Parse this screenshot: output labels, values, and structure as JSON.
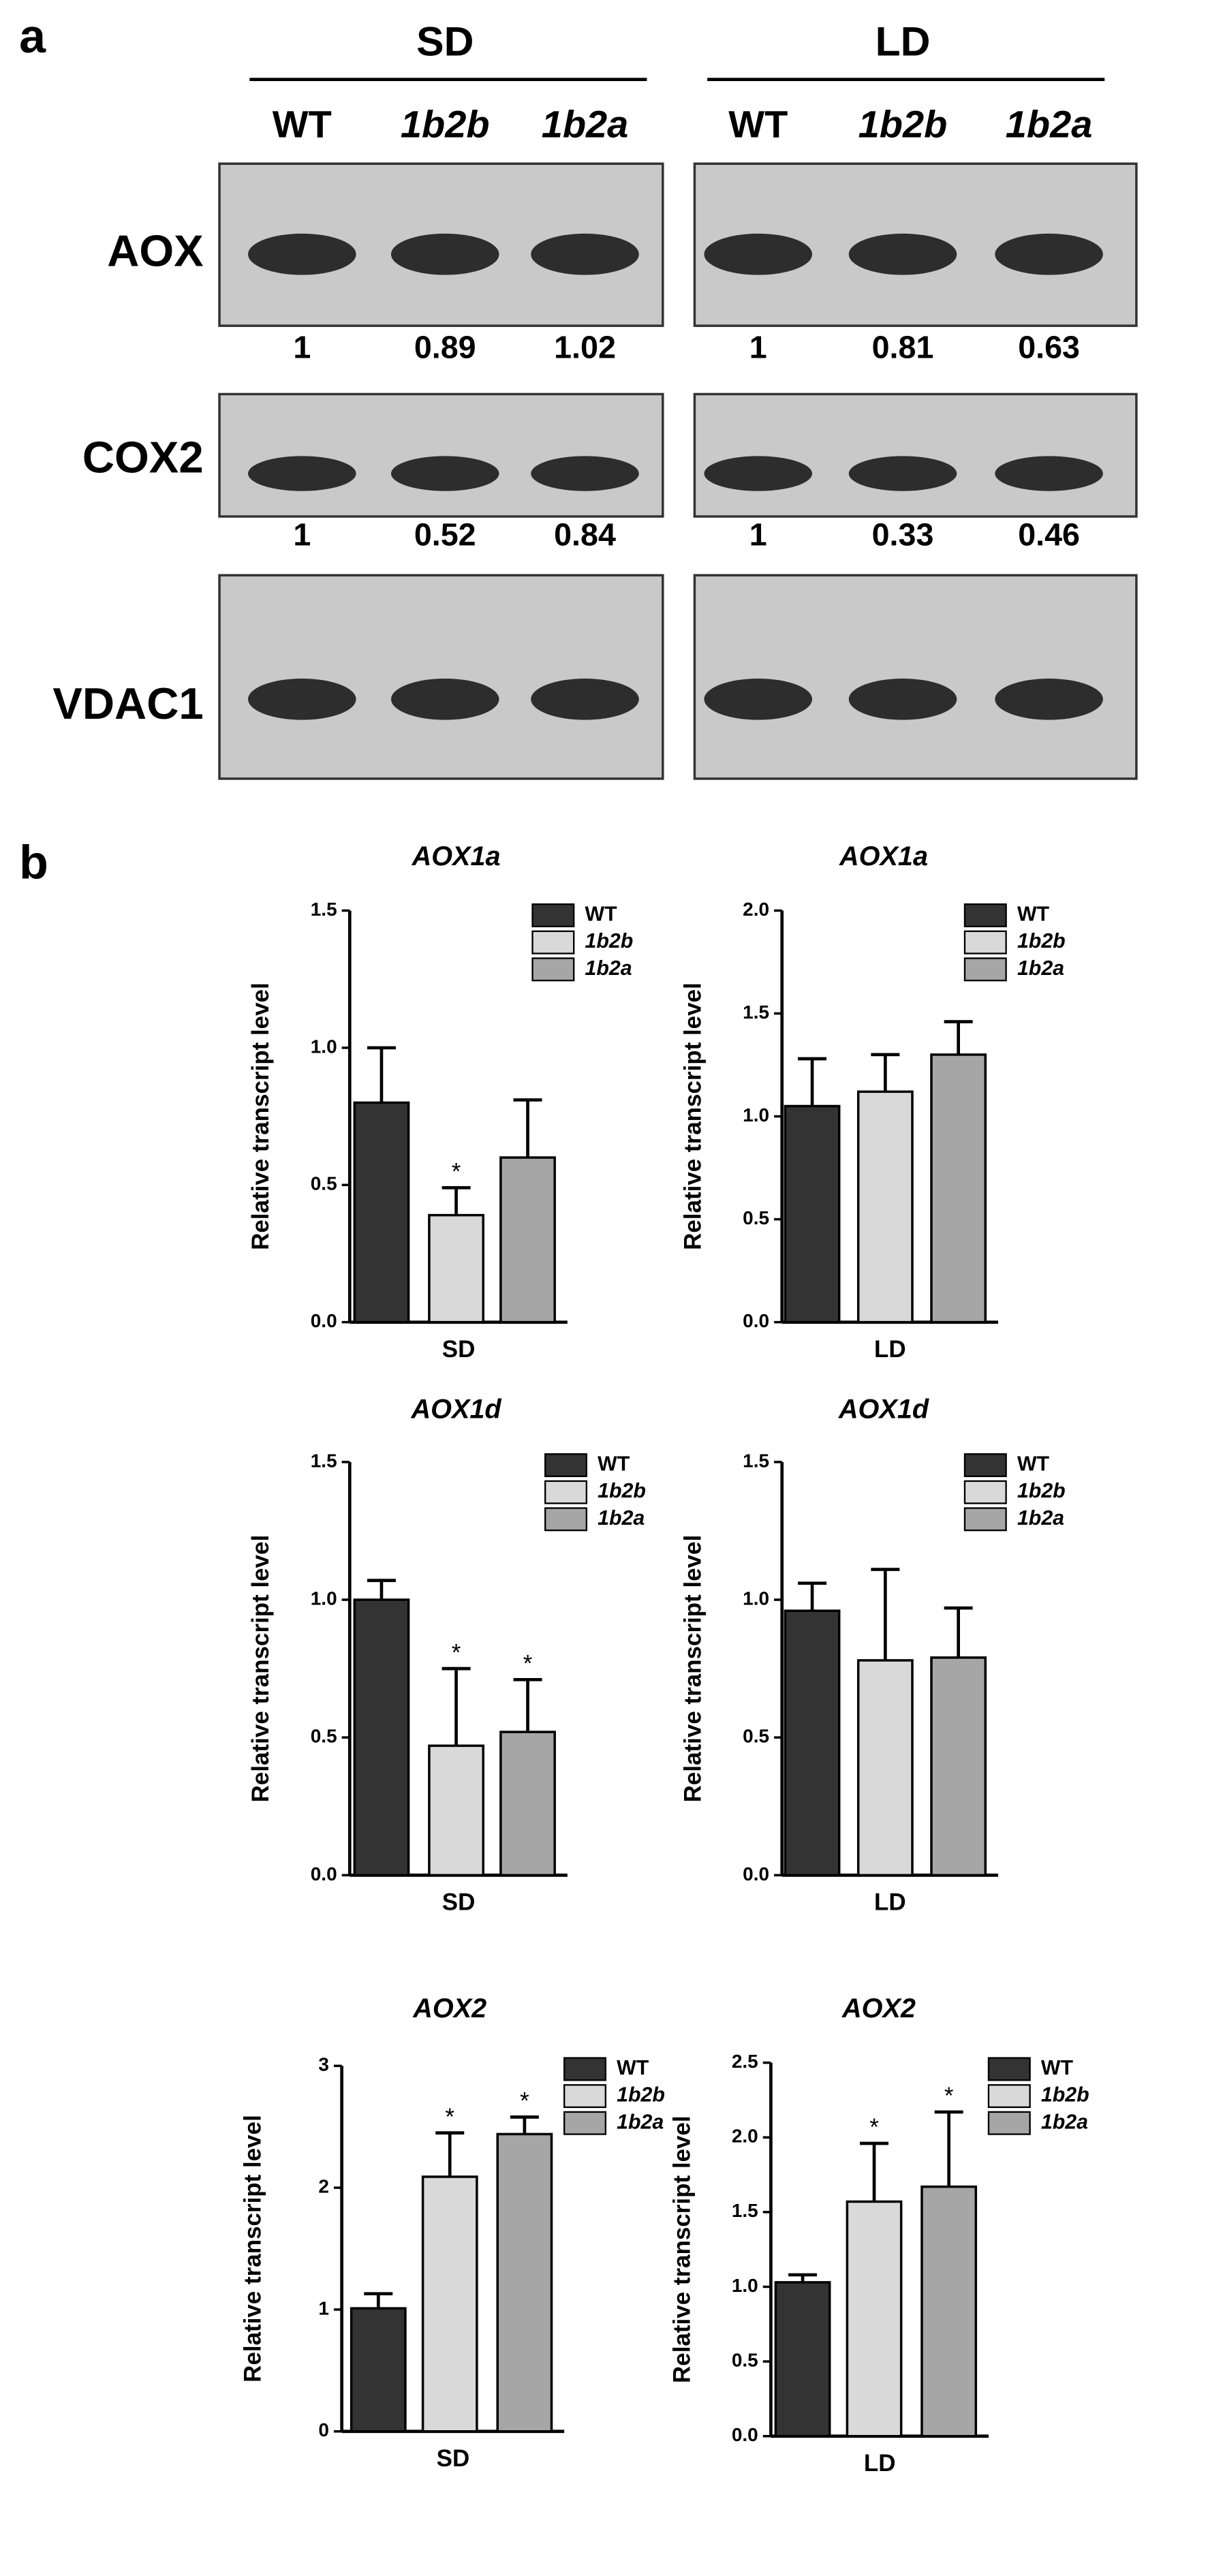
{
  "panel_a": {
    "label": "a",
    "groups": [
      {
        "name": "SD",
        "lanes": [
          "WT",
          "1b2b",
          "1b2a"
        ],
        "italic": [
          false,
          true,
          true
        ]
      },
      {
        "name": "LD",
        "lanes": [
          "WT",
          "1b2b",
          "1b2a"
        ],
        "italic": [
          false,
          true,
          true
        ]
      }
    ],
    "blots": [
      {
        "protein": "AOX",
        "quant": [
          [
            1,
            0.89,
            1.02
          ],
          [
            1,
            0.81,
            0.63
          ]
        ]
      },
      {
        "protein": "COX2",
        "quant": [
          [
            1,
            0.52,
            0.84
          ],
          [
            1,
            0.33,
            0.46
          ]
        ]
      },
      {
        "protein": "VDAC1"
      }
    ]
  },
  "panel_b_label": "b",
  "chart_data": [
    {
      "type": "bar",
      "title": "AOX1a",
      "y_label": "Relative transcript level",
      "categories": [
        "SD"
      ],
      "ylim": [
        0,
        1.5
      ],
      "yticks": [
        {
          "value": 0,
          "label": "0.0"
        },
        0.5,
        {
          "value": 1,
          "label": "1.0"
        },
        1.5
      ],
      "series": [
        {
          "name": "WT",
          "color": "#333333",
          "italic": false,
          "values": [
            0.8
          ],
          "errors": [
            0.2
          ],
          "markers": [
            null
          ]
        },
        {
          "name": "1b2b",
          "color": "#d9d9d9",
          "italic": true,
          "values": [
            0.39
          ],
          "errors": [
            0.1
          ],
          "markers": [
            "*"
          ]
        },
        {
          "name": "1b2a",
          "color": "#a6a6a6",
          "italic": true,
          "values": [
            0.6
          ],
          "errors": [
            0.21
          ],
          "markers": [
            null
          ]
        }
      ]
    },
    {
      "type": "bar",
      "title": "AOX1a",
      "y_label": "Relative transcript level",
      "categories": [
        "LD"
      ],
      "ylim": [
        0,
        2
      ],
      "yticks": [
        {
          "value": 0,
          "label": "0.0"
        },
        0.5,
        {
          "value": 1,
          "label": "1.0"
        },
        1.5,
        {
          "value": 2,
          "label": "2.0"
        }
      ],
      "series": [
        {
          "name": "WT",
          "color": "#333333",
          "italic": false,
          "values": [
            1.05
          ],
          "errors": [
            0.23
          ],
          "markers": [
            null
          ]
        },
        {
          "name": "1b2b",
          "color": "#d9d9d9",
          "italic": true,
          "values": [
            1.12
          ],
          "errors": [
            0.18
          ],
          "markers": [
            null
          ]
        },
        {
          "name": "1b2a",
          "color": "#a6a6a6",
          "italic": true,
          "values": [
            1.3
          ],
          "errors": [
            0.16
          ],
          "markers": [
            null
          ]
        }
      ]
    },
    {
      "type": "bar",
      "title": "AOX1d",
      "y_label": "Relative transcript level",
      "categories": [
        "SD"
      ],
      "ylim": [
        0,
        1.5
      ],
      "yticks": [
        {
          "value": 0,
          "label": "0.0"
        },
        0.5,
        {
          "value": 1,
          "label": "1.0"
        },
        1.5
      ],
      "series": [
        {
          "name": "WT",
          "color": "#333333",
          "italic": false,
          "values": [
            1.0
          ],
          "errors": [
            0.07
          ],
          "markers": [
            null
          ]
        },
        {
          "name": "1b2b",
          "color": "#d9d9d9",
          "italic": true,
          "values": [
            0.47
          ],
          "errors": [
            0.28
          ],
          "markers": [
            "*"
          ]
        },
        {
          "name": "1b2a",
          "color": "#a6a6a6",
          "italic": true,
          "values": [
            0.52
          ],
          "errors": [
            0.19
          ],
          "markers": [
            "*"
          ]
        }
      ]
    },
    {
      "type": "bar",
      "title": "AOX1d",
      "y_label": "Relative transcript level",
      "categories": [
        "LD"
      ],
      "ylim": [
        0,
        1.5
      ],
      "yticks": [
        {
          "value": 0,
          "label": "0.0"
        },
        0.5,
        {
          "value": 1,
          "label": "1.0"
        },
        1.5
      ],
      "series": [
        {
          "name": "WT",
          "color": "#333333",
          "italic": false,
          "values": [
            0.96
          ],
          "errors": [
            0.1
          ],
          "markers": [
            null
          ]
        },
        {
          "name": "1b2b",
          "color": "#d9d9d9",
          "italic": true,
          "values": [
            0.78
          ],
          "errors": [
            0.33
          ],
          "markers": [
            null
          ]
        },
        {
          "name": "1b2a",
          "color": "#a6a6a6",
          "italic": true,
          "values": [
            0.79
          ],
          "errors": [
            0.18
          ],
          "markers": [
            null
          ]
        }
      ]
    },
    {
      "type": "bar",
      "title": "AOX2",
      "y_label": "Relative transcript level",
      "categories": [
        "SD"
      ],
      "ylim": [
        0,
        3
      ],
      "yticks": [
        0,
        1,
        2,
        3
      ],
      "series": [
        {
          "name": "WT",
          "color": "#333333",
          "italic": false,
          "values": [
            1.01
          ],
          "errors": [
            0.12
          ],
          "markers": [
            null
          ]
        },
        {
          "name": "1b2b",
          "color": "#d9d9d9",
          "italic": true,
          "values": [
            2.09
          ],
          "errors": [
            0.36
          ],
          "markers": [
            "*"
          ]
        },
        {
          "name": "1b2a",
          "color": "#a6a6a6",
          "italic": true,
          "values": [
            2.44
          ],
          "errors": [
            0.14
          ],
          "markers": [
            "*"
          ]
        }
      ]
    },
    {
      "type": "bar",
      "title": "AOX2",
      "y_label": "Relative transcript level",
      "categories": [
        "LD"
      ],
      "ylim": [
        0,
        2.5
      ],
      "yticks": [
        {
          "value": 0,
          "label": "0.0"
        },
        0.5,
        {
          "value": 1,
          "label": "1.0"
        },
        1.5,
        {
          "value": 2,
          "label": "2.0"
        },
        2.5
      ],
      "series": [
        {
          "name": "WT",
          "color": "#333333",
          "italic": false,
          "values": [
            1.03
          ],
          "errors": [
            0.05
          ],
          "markers": [
            null
          ]
        },
        {
          "name": "1b2b",
          "color": "#d9d9d9",
          "italic": true,
          "values": [
            1.57
          ],
          "errors": [
            0.39
          ],
          "markers": [
            "*"
          ]
        },
        {
          "name": "1b2a",
          "color": "#a6a6a6",
          "italic": true,
          "values": [
            1.67
          ],
          "errors": [
            0.5
          ],
          "markers": [
            "*"
          ]
        }
      ]
    }
  ]
}
